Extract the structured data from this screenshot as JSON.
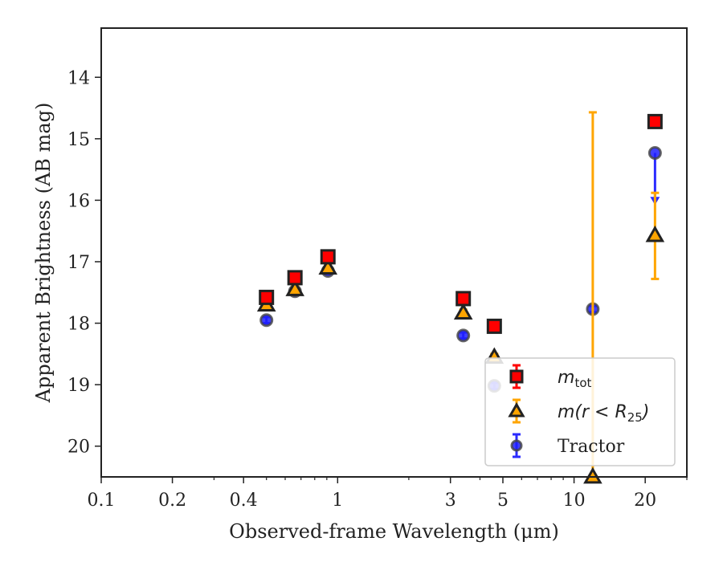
{
  "chart_data": {
    "type": "scatter",
    "xlabel": "Observed-frame Wavelength (μm)",
    "ylabel": "Apparent Brightness (AB mag)",
    "xscale": "log",
    "xlim": [
      0.1,
      30
    ],
    "ylim": [
      20.5,
      13.2
    ],
    "y_inverted": true,
    "x_ticks": [
      0.1,
      0.2,
      0.4,
      1,
      3,
      5,
      10,
      20
    ],
    "x_tick_labels": [
      "0.1",
      "0.2",
      "0.4",
      "1",
      "3",
      "5",
      "10",
      "20"
    ],
    "y_ticks": [
      14,
      15,
      16,
      17,
      18,
      19,
      20
    ],
    "y_tick_labels": [
      "14",
      "15",
      "16",
      "17",
      "18",
      "19",
      "20"
    ],
    "grid": false,
    "legend_position": "lower-right",
    "series": [
      {
        "key": "mtot",
        "legend_base": "m",
        "legend_sub": "tot",
        "legend_rest": "",
        "marker": "square",
        "face": "#ff0000",
        "edge": "#222222",
        "errcolor": "#ff0000",
        "points": [
          {
            "x": 0.5,
            "y": 17.58,
            "err": 0.05
          },
          {
            "x": 0.66,
            "y": 17.26,
            "err": 0.05
          },
          {
            "x": 0.91,
            "y": 16.92,
            "err": 0.05
          },
          {
            "x": 3.4,
            "y": 17.6,
            "err": 0.05
          },
          {
            "x": 4.6,
            "y": 18.05,
            "err": 0.05
          },
          {
            "x": 22,
            "y": 14.72,
            "err": 0.05
          }
        ]
      },
      {
        "key": "mr25",
        "legend_base": "m",
        "legend_sub": "25",
        "legend_rest": "(r < R",
        "legend_close": ")",
        "marker": "triangle",
        "face": "#ffa500",
        "edge": "#222222",
        "errcolor": "#ffa500",
        "points": [
          {
            "x": 0.5,
            "y": 17.7,
            "err": 0.05
          },
          {
            "x": 0.66,
            "y": 17.45,
            "err": 0.05
          },
          {
            "x": 0.91,
            "y": 17.1,
            "err": 0.05
          },
          {
            "x": 3.4,
            "y": 17.83,
            "err": 0.05
          },
          {
            "x": 4.6,
            "y": 18.55,
            "err": 0.05
          },
          {
            "x": 12,
            "y": 20.5,
            "err_low": 20.5,
            "err_high": 14.57
          },
          {
            "x": 22,
            "y": 16.57,
            "err_low": 17.28,
            "err_high": 15.88
          }
        ]
      },
      {
        "key": "tractor",
        "legend_base": "Tractor",
        "marker": "circle",
        "face": "#1f1fff",
        "edge": "#444444",
        "errcolor": "#2b2bff",
        "points": [
          {
            "x": 0.5,
            "y": 17.95,
            "err": 0.05
          },
          {
            "x": 0.66,
            "y": 17.48,
            "err": 0.05
          },
          {
            "x": 0.91,
            "y": 17.15,
            "err": 0.05
          },
          {
            "x": 3.4,
            "y": 18.2,
            "err": 0.05
          },
          {
            "x": 4.6,
            "y": 19.02,
            "err": 0.05
          },
          {
            "x": 12,
            "y": 17.77,
            "err": 0.05
          },
          {
            "x": 22,
            "y": 15.23,
            "upper_limit_to": 16.05
          }
        ]
      }
    ]
  }
}
